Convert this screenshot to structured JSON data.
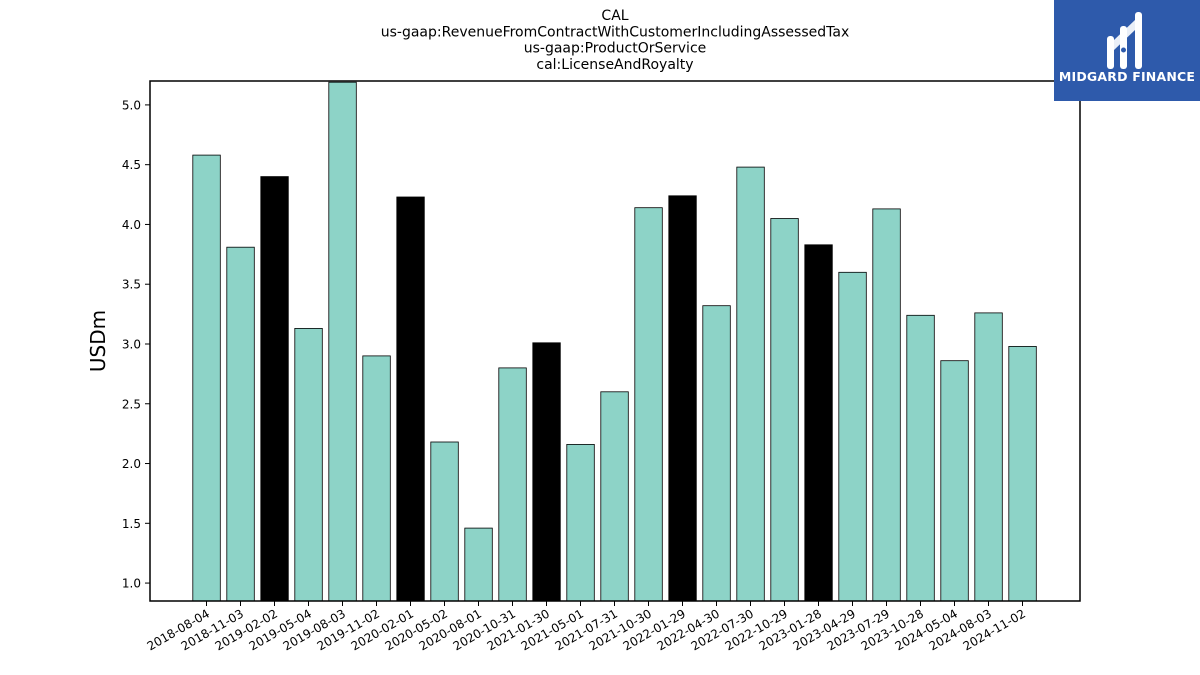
{
  "brand": {
    "name": "MIDGARD FINANCE",
    "background": "#2e5aab",
    "icon": "midgard-logo-icon"
  },
  "chart_data": {
    "type": "bar",
    "title_lines": [
      "CAL",
      "us-gaap:RevenueFromContractWithCustomerIncludingAssessedTax",
      "us-gaap:ProductOrService",
      "cal:LicenseAndRoyalty"
    ],
    "xlabel": "",
    "ylabel": "USDm",
    "ylim": [
      0.85,
      5.2
    ],
    "yticks": [
      "1.0",
      "1.5",
      "2.0",
      "2.5",
      "3.0",
      "3.5",
      "4.0",
      "4.5",
      "5.0"
    ],
    "categories": [
      "2018-08-04",
      "2018-11-03",
      "2019-02-02",
      "2019-05-04",
      "2019-08-03",
      "2019-11-02",
      "2020-02-01",
      "2020-05-02",
      "2020-08-01",
      "2020-10-31",
      "2021-01-30",
      "2021-05-01",
      "2021-07-31",
      "2021-10-30",
      "2022-01-29",
      "2022-04-30",
      "2022-07-30",
      "2022-10-29",
      "2023-01-28",
      "2023-04-29",
      "2023-07-29",
      "2023-10-28",
      "2024-05-04",
      "2024-08-03",
      "2024-11-02"
    ],
    "values": [
      4.58,
      3.81,
      4.4,
      3.13,
      5.19,
      2.9,
      4.23,
      2.18,
      1.46,
      2.8,
      3.01,
      2.16,
      2.6,
      4.14,
      4.24,
      3.32,
      4.48,
      4.05,
      3.83,
      3.6,
      4.13,
      3.24,
      2.86,
      3.26,
      2.98
    ],
    "highlight": [
      false,
      false,
      true,
      false,
      false,
      false,
      true,
      false,
      false,
      false,
      true,
      false,
      false,
      false,
      true,
      false,
      false,
      false,
      true,
      false,
      false,
      false,
      false,
      false,
      false
    ],
    "colors": {
      "bar": "#8dd3c7",
      "highlight": "#000000",
      "edge": "#000000"
    },
    "grid": false,
    "legend": "none"
  }
}
